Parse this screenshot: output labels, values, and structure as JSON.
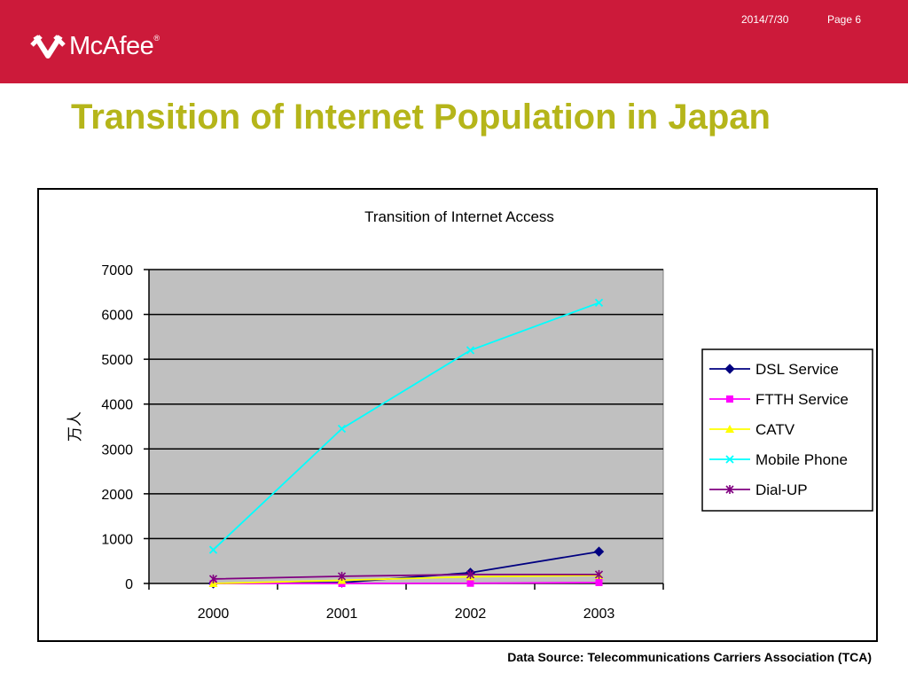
{
  "header": {
    "brand": "McAfee",
    "date": "2014/7/30",
    "page": "Page 6"
  },
  "slide": {
    "title": "Transition of Internet Population in Japan",
    "source": "Data Source: Telecommunications Carriers Association (TCA)"
  },
  "colors": {
    "header_bg": "#cc1a3a",
    "title": "#b5b51a",
    "plot_bg": "#c0c0c0"
  },
  "chart_data": {
    "type": "line",
    "title": "Transition of Internet Access",
    "xlabel": "",
    "ylabel": "万人",
    "categories": [
      "2000",
      "2001",
      "2002",
      "2003"
    ],
    "ylim": [
      0,
      7000
    ],
    "yticks": [
      0,
      1000,
      2000,
      3000,
      4000,
      5000,
      6000,
      7000
    ],
    "grid": true,
    "legend_position": "right",
    "series": [
      {
        "name": "DSL Service",
        "values": [
          0,
          20,
          240,
          710
        ],
        "color": "#000080",
        "marker": "diamond"
      },
      {
        "name": "FTTH Service",
        "values": [
          0,
          0,
          5,
          20
        ],
        "color": "#ff00ff",
        "marker": "square"
      },
      {
        "name": "CATV",
        "values": [
          0,
          70,
          150,
          180
        ],
        "color": "#ffff00",
        "marker": "triangle"
      },
      {
        "name": "Mobile Phone",
        "values": [
          750,
          3450,
          5200,
          6260
        ],
        "color": "#00ffff",
        "marker": "x"
      },
      {
        "name": "Dial-UP",
        "values": [
          100,
          160,
          200,
          200
        ],
        "color": "#800080",
        "marker": "star"
      }
    ]
  }
}
